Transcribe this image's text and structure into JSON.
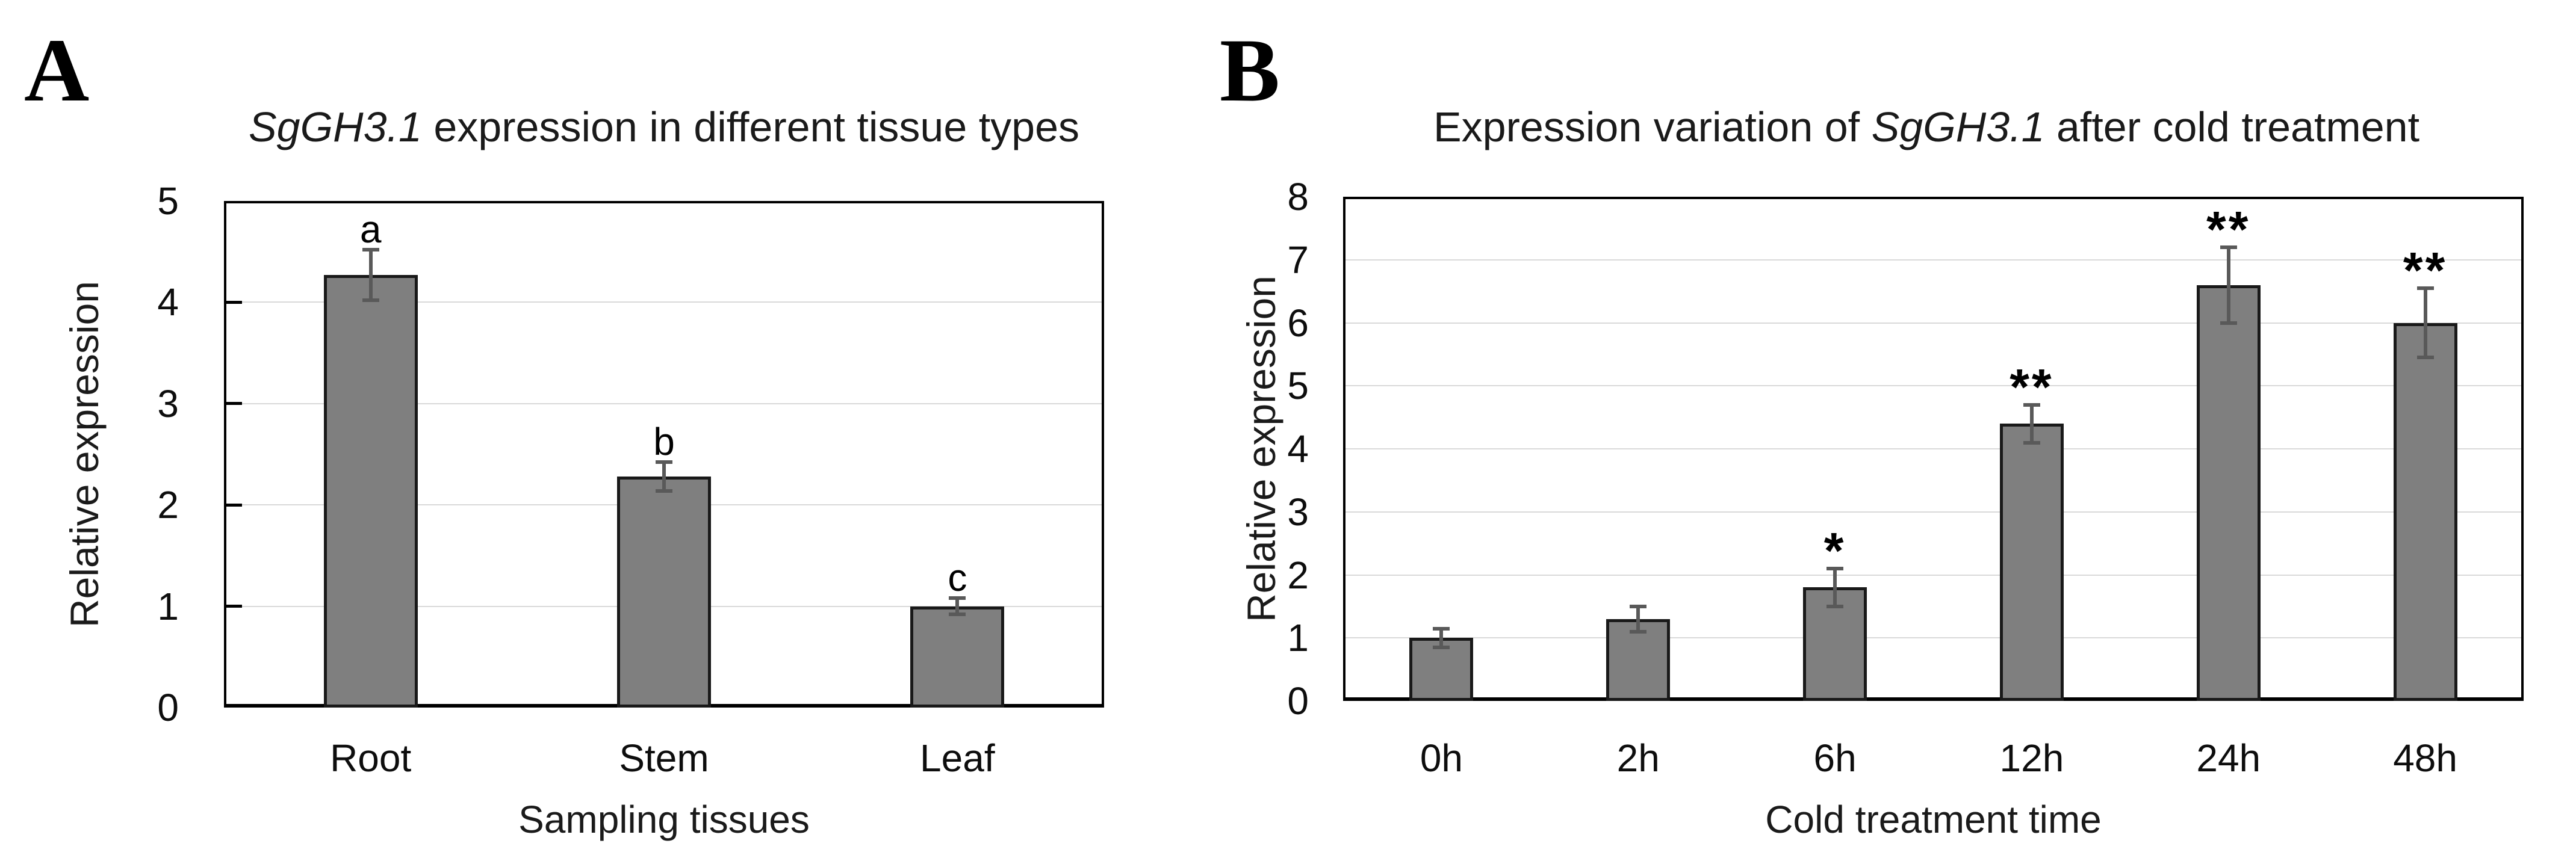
{
  "figure": {
    "background": "#ffffff",
    "colors": {
      "bar_fill": "#7f7f7f",
      "bar_border": "#191919",
      "error_bar": "#595959",
      "gridline": "#d9d9d9",
      "axis": "#000000",
      "text": "#000000"
    }
  },
  "chart_data": [
    {
      "type": "bar",
      "panel_label": "A",
      "title": "SgGH3.1 expression in different tissue types",
      "title_parts": [
        {
          "text": "SgGH3.1",
          "italic": true
        },
        {
          "text": " expression in different tissue types",
          "italic": false
        }
      ],
      "xlabel": "Sampling tissues",
      "ylabel": "Relative expression",
      "ylim": [
        0,
        5
      ],
      "yticks": [
        0,
        1,
        2,
        3,
        4,
        5
      ],
      "grid": true,
      "legend_position": "none",
      "categories": [
        "Root",
        "Stem",
        "Leaf"
      ],
      "values": [
        4.27,
        2.28,
        1.0
      ],
      "errors": [
        0.25,
        0.14,
        0.08
      ],
      "sig_labels": [
        "a",
        "b",
        "c"
      ],
      "sig_types": [
        "letter",
        "letter",
        "letter"
      ]
    },
    {
      "type": "bar",
      "panel_label": "B",
      "title": "Expression variation of SgGH3.1 after cold treatment",
      "title_parts": [
        {
          "text": "Expression variation of ",
          "italic": false
        },
        {
          "text": "SgGH3.1",
          "italic": true
        },
        {
          "text": " after cold treatment",
          "italic": false
        }
      ],
      "xlabel": "Cold treatment time",
      "ylabel": "Relative expression",
      "ylim": [
        0,
        8
      ],
      "yticks": [
        0,
        1,
        2,
        3,
        4,
        5,
        6,
        7,
        8
      ],
      "grid": true,
      "legend_position": "none",
      "categories": [
        "0h",
        "2h",
        "6h",
        "12h",
        "24h",
        "48h"
      ],
      "values": [
        1.0,
        1.3,
        1.8,
        4.4,
        6.6,
        6.0
      ],
      "errors": [
        0.15,
        0.2,
        0.3,
        0.3,
        0.6,
        0.55
      ],
      "sig_labels": [
        "",
        "",
        "*",
        "**",
        "**",
        "**"
      ],
      "sig_types": [
        "none",
        "none",
        "star",
        "star",
        "star",
        "star"
      ]
    }
  ]
}
